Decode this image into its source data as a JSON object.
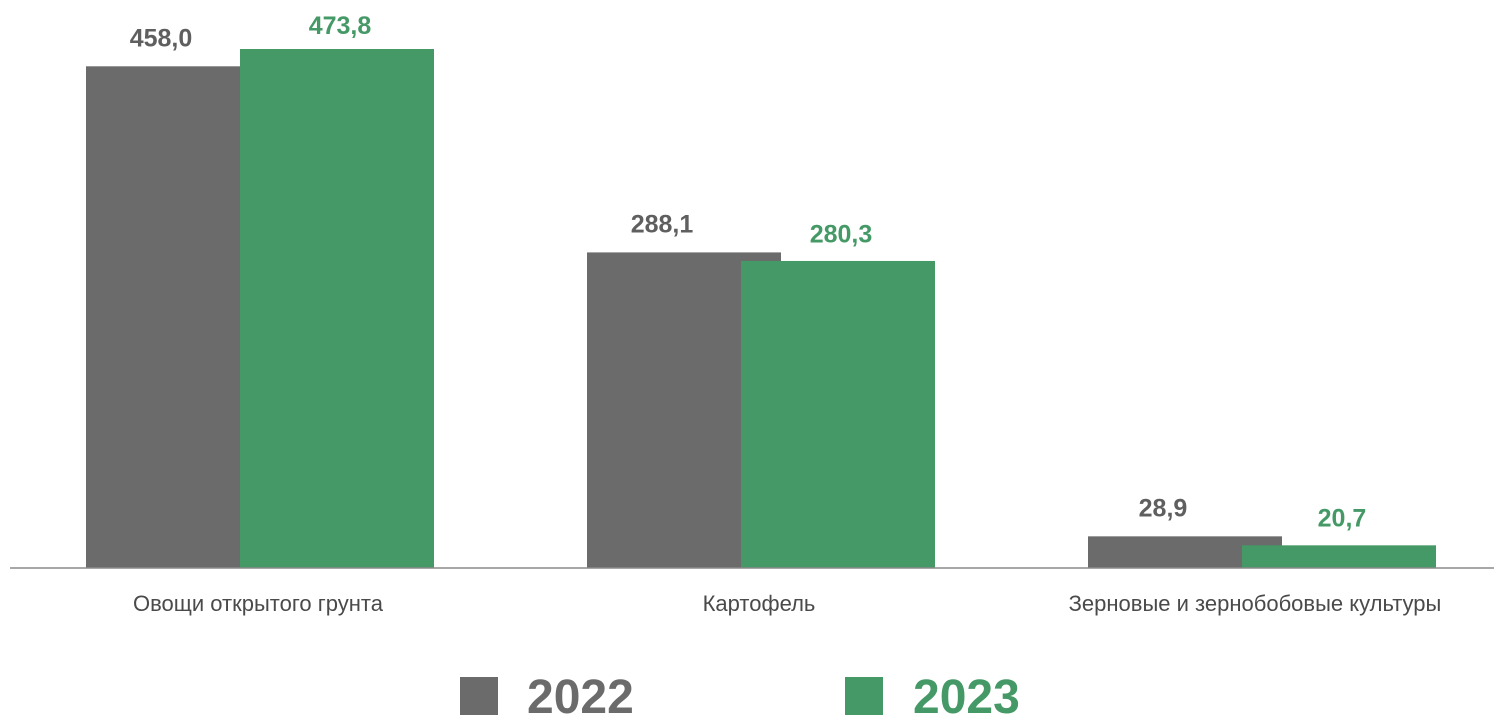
{
  "chart_data": {
    "type": "bar",
    "categories": [
      "Овощи открытого грунта",
      "Картофель",
      "Зерновые и зернобобовые культуры"
    ],
    "series": [
      {
        "name": "2022",
        "values": [
          458.0,
          288.1,
          28.9
        ],
        "labels": [
          "458,0",
          "288,1",
          "28,9"
        ],
        "color": "#6b6b6b"
      },
      {
        "name": "2023",
        "values": [
          473.8,
          280.3,
          20.7
        ],
        "labels": [
          "473,8",
          "280,3",
          "20,7"
        ],
        "color": "#459966"
      }
    ],
    "title": "",
    "xlabel": "",
    "ylabel": "",
    "ylim": [
      0,
      473.8
    ],
    "grid": false,
    "legend": "bottom-center"
  }
}
